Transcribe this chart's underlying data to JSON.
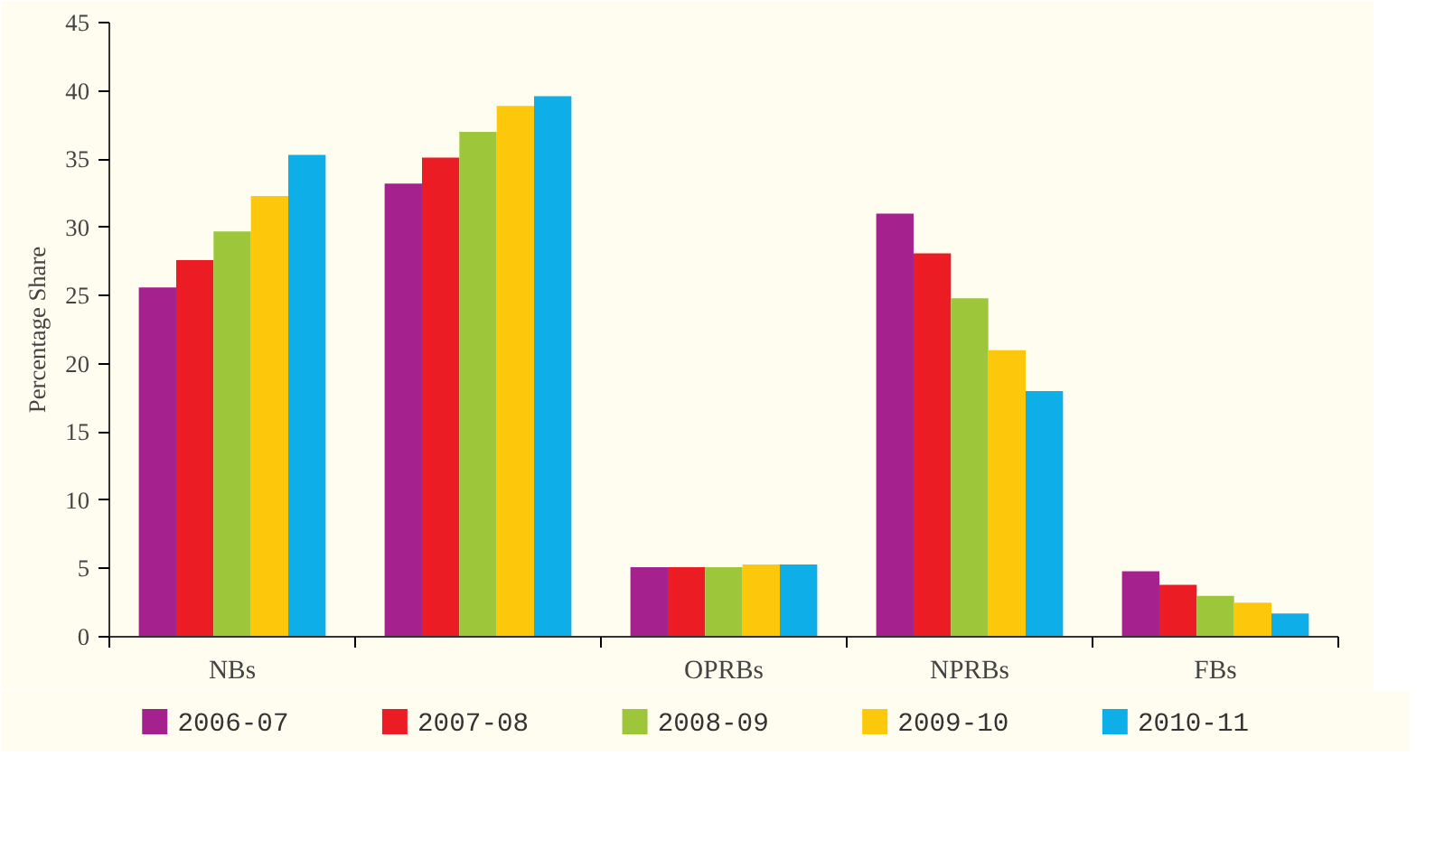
{
  "chart_data": {
    "type": "bar",
    "ylabel": "Percentage Share",
    "categories": [
      "NBs",
      null,
      "OPRBs",
      "NPRBs",
      "FBs"
    ],
    "series": [
      {
        "name": "2006-07",
        "color": "#a5228e",
        "values": [
          25.6,
          33.2,
          5.1,
          31,
          4.8
        ]
      },
      {
        "name": "2007-08",
        "color": "#ec1c24",
        "values": [
          27.6,
          35.1,
          5.1,
          28.1,
          3.8
        ]
      },
      {
        "name": "2008-09",
        "color": "#9dc63b",
        "values": [
          29.7,
          37,
          5.1,
          24.8,
          3
        ]
      },
      {
        "name": "2009-10",
        "color": "#fdc70c",
        "values": [
          32.3,
          38.9,
          5.3,
          21,
          2.5
        ]
      },
      {
        "name": "2010-11",
        "color": "#0eaee8",
        "values": [
          35.3,
          39.6,
          5.3,
          18,
          1.7
        ]
      }
    ],
    "ylim": [
      0,
      45
    ],
    "yticks": [
      0,
      5,
      10,
      15,
      20,
      25,
      30,
      35,
      40,
      45
    ],
    "grid": false,
    "legend": "bottom"
  }
}
